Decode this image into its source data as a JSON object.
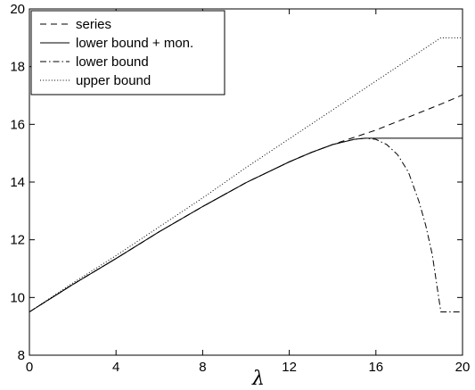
{
  "chart_data": {
    "type": "line",
    "title": "",
    "xlabel": "λ",
    "ylabel": "",
    "xlim": [
      0,
      20
    ],
    "ylim": [
      8,
      20
    ],
    "xticks": [
      0,
      4,
      8,
      12,
      16,
      20
    ],
    "yticks": [
      8,
      10,
      12,
      14,
      16,
      18,
      20
    ],
    "xtick_labels": [
      "0",
      "4",
      "8",
      "12",
      "16",
      "20"
    ],
    "ytick_labels": [
      "8",
      "10",
      "12",
      "14",
      "16",
      "18",
      "20"
    ],
    "grid": false,
    "legend": "top-left",
    "series": [
      {
        "name": "series",
        "style": "dashed",
        "x": [
          0,
          2,
          4,
          6,
          8,
          10,
          12,
          13,
          14,
          15,
          16,
          17,
          18,
          19,
          20
        ],
        "y": [
          9.5,
          10.45,
          11.35,
          12.28,
          13.15,
          13.98,
          14.7,
          15.02,
          15.3,
          15.55,
          15.8,
          16.1,
          16.4,
          16.7,
          17.02
        ]
      },
      {
        "name": "lower bound + mon.",
        "style": "solid",
        "x": [
          0,
          2,
          4,
          6,
          8,
          10,
          12,
          13,
          14,
          15,
          15.5,
          16,
          17,
          18,
          19,
          20
        ],
        "y": [
          9.5,
          10.45,
          11.35,
          12.28,
          13.15,
          13.98,
          14.7,
          15.02,
          15.3,
          15.48,
          15.52,
          15.52,
          15.52,
          15.52,
          15.52,
          15.52
        ]
      },
      {
        "name": "lower bound",
        "style": "dashdot",
        "x": [
          0,
          2,
          4,
          6,
          8,
          10,
          12,
          13,
          14,
          15,
          15.5,
          16,
          16.5,
          17,
          17.5,
          18,
          18.3,
          18.6,
          18.8,
          19.0,
          20
        ],
        "y": [
          9.5,
          10.45,
          11.35,
          12.28,
          13.15,
          13.98,
          14.7,
          15.02,
          15.3,
          15.48,
          15.52,
          15.48,
          15.3,
          14.95,
          14.35,
          13.3,
          12.5,
          11.5,
          10.5,
          9.5,
          9.5
        ]
      },
      {
        "name": "upper bound",
        "style": "dotted",
        "x": [
          0,
          2,
          4,
          6,
          8,
          10,
          12,
          14,
          16,
          18,
          19,
          20
        ],
        "y": [
          9.5,
          10.5,
          11.45,
          12.45,
          13.45,
          14.5,
          15.5,
          16.5,
          17.5,
          18.5,
          19.0,
          19.0
        ]
      }
    ]
  }
}
